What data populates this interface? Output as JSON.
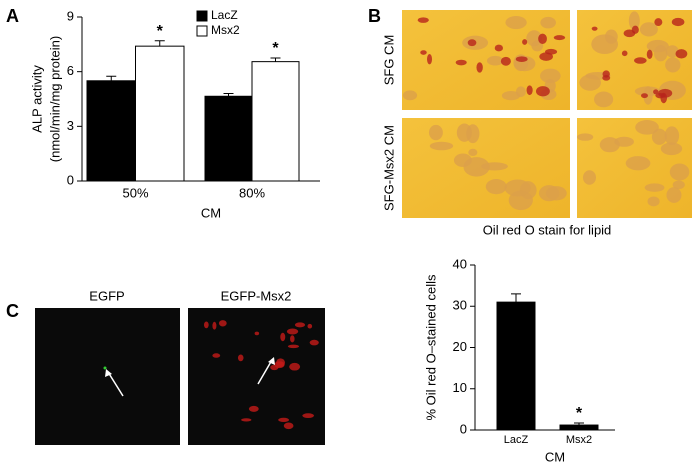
{
  "panel_labels": {
    "a": "A",
    "b": "B",
    "c": "C"
  },
  "panel_b": {
    "rows": [
      "SFG CM",
      "SFG-Msx2 CM"
    ],
    "caption": "Oil red O stain for lipid"
  },
  "panel_c": {
    "columns": [
      "EGFP",
      "EGFP-Msx2"
    ]
  },
  "chart_data": [
    {
      "type": "bar",
      "ylabel": [
        "ALP activity",
        "(nmol/min/mg protein)"
      ],
      "xlabel": "CM",
      "categories": [
        "50%",
        "80%"
      ],
      "series": [
        {
          "name": "LacZ",
          "color": "#000000",
          "values": [
            5.5,
            4.65
          ],
          "errors": [
            0.25,
            0.15
          ]
        },
        {
          "name": "Msx2",
          "color": "#ffffff",
          "values": [
            7.4,
            6.55
          ],
          "errors": [
            0.3,
            0.2
          ],
          "significance": [
            "*",
            "*"
          ]
        }
      ],
      "ylim": [
        0,
        9
      ],
      "yticks": [
        0,
        3,
        6,
        9
      ],
      "legend": "top-right"
    },
    {
      "type": "bar",
      "ylabel": [
        "% Oil red O–stained cells"
      ],
      "xlabel": "CM",
      "categories": [
        "LacZ",
        "Msx2"
      ],
      "series": [
        {
          "color": "#000000",
          "values": [
            31,
            1.2
          ],
          "errors": [
            2,
            0.5
          ],
          "significance": [
            null,
            "*"
          ]
        }
      ],
      "ylim": [
        0,
        40
      ],
      "yticks": [
        0,
        10,
        20,
        30,
        40
      ]
    }
  ]
}
